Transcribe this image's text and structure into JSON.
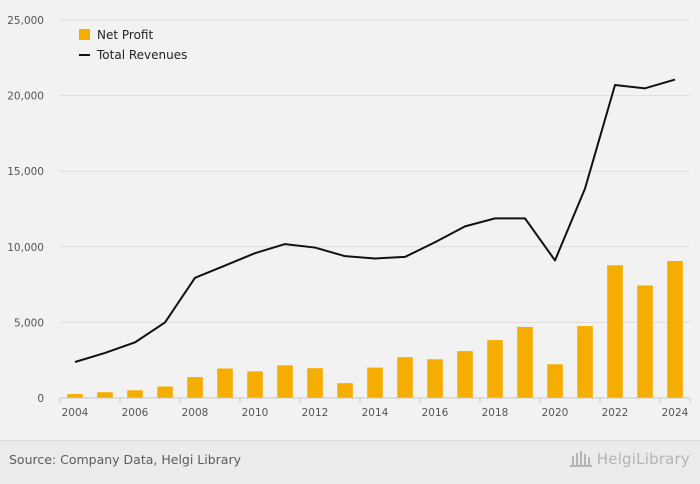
{
  "chart_data": {
    "type": "bar",
    "categories": [
      "2004",
      "2005",
      "2006",
      "2007",
      "2008",
      "2009",
      "2010",
      "2011",
      "2012",
      "2013",
      "2014",
      "2015",
      "2016",
      "2017",
      "2018",
      "2019",
      "2020",
      "2021",
      "2022",
      "2023",
      "2024"
    ],
    "x_tick_labels": [
      "2004",
      "2006",
      "2008",
      "2010",
      "2012",
      "2014",
      "2016",
      "2018",
      "2020",
      "2022",
      "2024"
    ],
    "y_ticks": [
      "0",
      "5,000",
      "10,000",
      "15,000",
      "20,000",
      "25,000"
    ],
    "ylim": [
      0,
      25000
    ],
    "grid": true,
    "legend_position": "top-left",
    "series": [
      {
        "name": "Net Profit",
        "type": "bar",
        "color": "#f5ad00",
        "values": [
          260,
          380,
          510,
          760,
          1380,
          1950,
          1760,
          2160,
          1970,
          980,
          2010,
          2700,
          2560,
          3100,
          3830,
          4700,
          2230,
          4760,
          8780,
          7440,
          9060
        ]
      },
      {
        "name": "Total Revenues",
        "type": "line",
        "color": "#111111",
        "values": [
          2380,
          2980,
          3680,
          5000,
          7950,
          8760,
          9580,
          10180,
          9950,
          9380,
          9230,
          9330,
          10300,
          11350,
          11880,
          11880,
          9100,
          13850,
          20700,
          20480,
          21060
        ]
      }
    ]
  },
  "footer": {
    "source": "Source: Company Data, Helgi Library",
    "brand": "HelgiLibrary"
  }
}
